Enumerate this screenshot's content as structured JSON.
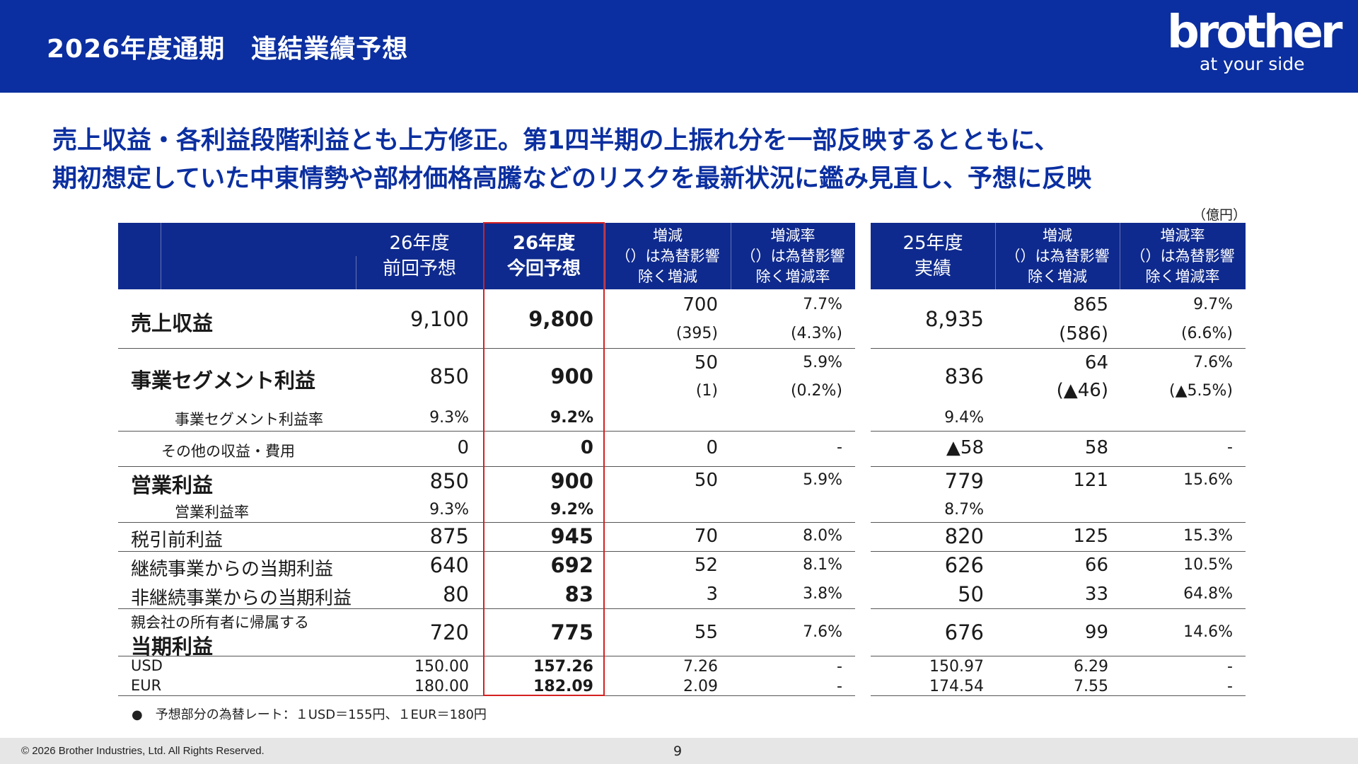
{
  "header": {
    "title": "2026年度通期　連結業績予想",
    "logo_word": "brother",
    "logo_tagline": "at your side"
  },
  "headline": {
    "line1": "売上収益・各利益段階利益とも上方修正。第1四半期の上振れ分を一部反映するとともに、",
    "line2": "期初想定していた中東情勢や部材価格高騰などのリスクを最新状況に鑑み見直し、予想に反映"
  },
  "unit_label": "（億円）",
  "left_table": {
    "headers": {
      "col1_line1": "26年度",
      "col1_line2": "前回予想",
      "col2_line1": "26年度",
      "col2_line2": "今回予想",
      "col3_line1": "増減",
      "col3_line2": "（）は為替影響",
      "col3_line3": "除く増減",
      "col4_line1": "増減率",
      "col4_line2": "（）は為替影響",
      "col4_line3": "除く増減率"
    },
    "rows": {
      "revenue": {
        "label": "売上収益",
        "prev": "9,100",
        "cur": "9,800",
        "chg": "700",
        "chg_ex": "(395)",
        "rate": "7.7%",
        "rate_ex": "(4.3%)"
      },
      "segment": {
        "label": "事業セグメント利益",
        "prev": "850",
        "cur": "900",
        "chg": "50",
        "chg_ex": "(1)",
        "rate": "5.9%",
        "rate_ex": "(0.2%)"
      },
      "segment_rate": {
        "label": "事業セグメント利益率",
        "prev": "9.3%",
        "cur": "9.2%"
      },
      "other": {
        "label": "その他の収益・費用",
        "prev": "0",
        "cur": "0",
        "chg": "0",
        "rate": "-"
      },
      "operating": {
        "label": "営業利益",
        "prev": "850",
        "cur": "900",
        "chg": "50",
        "rate": "5.9%"
      },
      "operating_rate": {
        "label": "営業利益率",
        "prev": "9.3%",
        "cur": "9.2%"
      },
      "pretax": {
        "label": "税引前利益",
        "prev": "875",
        "cur": "945",
        "chg": "70",
        "rate": "8.0%"
      },
      "continuing": {
        "label": "継続事業からの当期利益",
        "prev": "640",
        "cur": "692",
        "chg": "52",
        "rate": "8.1%"
      },
      "discontinued": {
        "label": "非継続事業からの当期利益",
        "prev": "80",
        "cur": "83",
        "chg": "3",
        "rate": "3.8%"
      },
      "net": {
        "label1": "親会社の所有者に帰属する",
        "label2": "当期利益",
        "prev": "720",
        "cur": "775",
        "chg": "55",
        "rate": "7.6%"
      },
      "usd": {
        "label": "USD",
        "prev": "150.00",
        "cur": "157.26",
        "chg": "7.26",
        "rate": "-"
      },
      "eur": {
        "label": "EUR",
        "prev": "180.00",
        "cur": "182.09",
        "chg": "2.09",
        "rate": "-"
      }
    }
  },
  "right_table": {
    "headers": {
      "col1_line1": "25年度",
      "col1_line2": "実績",
      "col2_line1": "増減",
      "col2_line2": "（）は為替影響",
      "col2_line3": "除く増減",
      "col3_line1": "増減率",
      "col3_line2": "（）は為替影響",
      "col3_line3": "除く増減率"
    },
    "rows": {
      "revenue": {
        "actual": "8,935",
        "chg": "865",
        "chg_ex": "(586)",
        "rate": "9.7%",
        "rate_ex": "(6.6%)"
      },
      "segment": {
        "actual": "836",
        "chg": "64",
        "chg_ex": "(▲46)",
        "rate": "7.6%",
        "rate_ex": "(▲5.5%)"
      },
      "segment_rate": {
        "actual": "9.4%"
      },
      "other": {
        "actual": "▲58",
        "chg": "58",
        "rate": "-"
      },
      "operating": {
        "actual": "779",
        "chg": "121",
        "rate": "15.6%"
      },
      "operating_rate": {
        "actual": "8.7%"
      },
      "pretax": {
        "actual": "820",
        "chg": "125",
        "rate": "15.3%"
      },
      "continuing": {
        "actual": "626",
        "chg": "66",
        "rate": "10.5%"
      },
      "discontinued": {
        "actual": "50",
        "chg": "33",
        "rate": "64.8%"
      },
      "net": {
        "actual": "676",
        "chg": "99",
        "rate": "14.6%"
      },
      "usd": {
        "actual": "150.97",
        "chg": "6.29",
        "rate": "-"
      },
      "eur": {
        "actual": "174.54",
        "chg": "7.55",
        "rate": "-"
      }
    }
  },
  "note": "●　予想部分の為替レート：１USD＝155円、１EUR＝180円",
  "footer": {
    "copyright": "© 2026 Brother Industries, Ltd. All Rights Reserved.",
    "page": "9"
  }
}
